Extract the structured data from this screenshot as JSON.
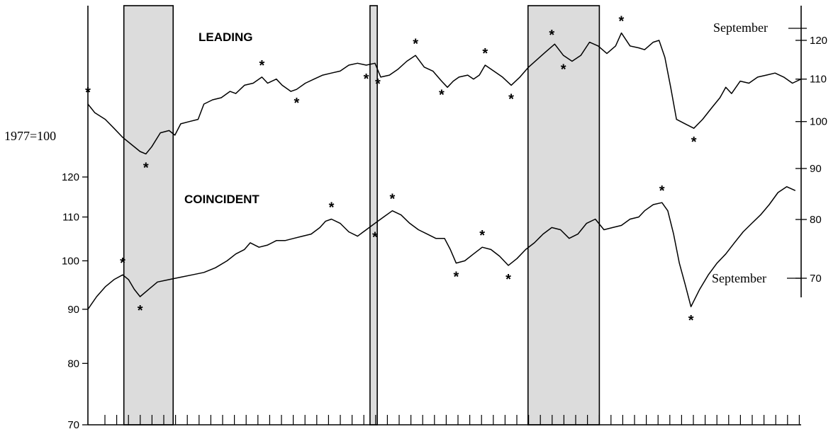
{
  "chart_data": {
    "type": "line",
    "base_label": "1977=100",
    "left_axis": {
      "ticks": [
        70,
        80,
        90,
        100,
        110,
        120
      ],
      "scale": "log",
      "range": [
        70,
        125
      ]
    },
    "right_axis": {
      "upper_ticks": [
        90,
        100,
        110,
        120
      ],
      "lower_ticks": [
        70,
        80
      ],
      "scale": "log"
    },
    "recession_shades": [
      {
        "start": 0.062,
        "end": 0.147
      },
      {
        "start": 0.4865,
        "end": 0.499
      },
      {
        "start": 0.759,
        "end": 0.882
      }
    ],
    "series": [
      {
        "name": "LEADING",
        "end_label": "September",
        "axis": "right",
        "points": [
          [
            0.0,
            104.0
          ],
          [
            0.012,
            102.0
          ],
          [
            0.03,
            100.5
          ],
          [
            0.045,
            98.5
          ],
          [
            0.06,
            96.5
          ],
          [
            0.075,
            95.0
          ],
          [
            0.09,
            93.5
          ],
          [
            0.1,
            93.0
          ],
          [
            0.11,
            94.5
          ],
          [
            0.125,
            97.5
          ],
          [
            0.14,
            98.0
          ],
          [
            0.15,
            97.0
          ],
          [
            0.16,
            99.5
          ],
          [
            0.175,
            100.0
          ],
          [
            0.19,
            100.5
          ],
          [
            0.2,
            104.0
          ],
          [
            0.215,
            105.0
          ],
          [
            0.23,
            105.5
          ],
          [
            0.245,
            107.0
          ],
          [
            0.255,
            106.5
          ],
          [
            0.27,
            108.5
          ],
          [
            0.285,
            109.0
          ],
          [
            0.3,
            110.5
          ],
          [
            0.31,
            109.0
          ],
          [
            0.325,
            110.0
          ],
          [
            0.335,
            108.5
          ],
          [
            0.35,
            107.0
          ],
          [
            0.36,
            107.5
          ],
          [
            0.375,
            109.0
          ],
          [
            0.39,
            110.0
          ],
          [
            0.405,
            111.0
          ],
          [
            0.42,
            111.5
          ],
          [
            0.435,
            112.0
          ],
          [
            0.45,
            113.5
          ],
          [
            0.465,
            114.0
          ],
          [
            0.48,
            113.5
          ],
          [
            0.495,
            114.0
          ],
          [
            0.505,
            110.5
          ],
          [
            0.52,
            111.0
          ],
          [
            0.535,
            112.5
          ],
          [
            0.55,
            114.5
          ],
          [
            0.565,
            116.0
          ],
          [
            0.58,
            113.0
          ],
          [
            0.595,
            112.0
          ],
          [
            0.61,
            109.5
          ],
          [
            0.62,
            108.0
          ],
          [
            0.63,
            109.5
          ],
          [
            0.64,
            110.5
          ],
          [
            0.655,
            111.0
          ],
          [
            0.665,
            110.0
          ],
          [
            0.675,
            111.0
          ],
          [
            0.685,
            113.5
          ],
          [
            0.7,
            112.0
          ],
          [
            0.715,
            110.5
          ],
          [
            0.73,
            108.5
          ],
          [
            0.745,
            110.5
          ],
          [
            0.76,
            113.0
          ],
          [
            0.775,
            115.0
          ],
          [
            0.79,
            117.0
          ],
          [
            0.805,
            119.0
          ],
          [
            0.82,
            116.0
          ],
          [
            0.835,
            114.5
          ],
          [
            0.85,
            116.0
          ],
          [
            0.865,
            119.5
          ],
          [
            0.88,
            118.5
          ],
          [
            0.895,
            116.5
          ],
          [
            0.91,
            118.5
          ],
          [
            0.92,
            122.0
          ],
          [
            0.935,
            118.5
          ],
          [
            0.95,
            118.0
          ],
          [
            0.96,
            117.5
          ],
          [
            0.975,
            119.5
          ],
          [
            0.985,
            120.0
          ],
          [
            0.995,
            115.5
          ],
          [
            1.005,
            108.0
          ],
          [
            1.015,
            100.5
          ],
          [
            1.03,
            99.5
          ],
          [
            1.045,
            98.5
          ],
          [
            1.06,
            100.5
          ],
          [
            1.075,
            103.0
          ],
          [
            1.09,
            105.5
          ],
          [
            1.1,
            108.0
          ],
          [
            1.11,
            106.5
          ],
          [
            1.125,
            109.5
          ],
          [
            1.14,
            109.0
          ],
          [
            1.155,
            110.5
          ],
          [
            1.17,
            111.0
          ],
          [
            1.185,
            111.5
          ],
          [
            1.2,
            110.5
          ],
          [
            1.215,
            109.0
          ],
          [
            1.23,
            110.0
          ]
        ]
      },
      {
        "name": "COINCIDENT",
        "end_label": "September",
        "axis": "left",
        "points": [
          [
            0.0,
            90.0
          ],
          [
            0.015,
            92.5
          ],
          [
            0.03,
            94.5
          ],
          [
            0.045,
            96.0
          ],
          [
            0.06,
            97.0
          ],
          [
            0.07,
            96.0
          ],
          [
            0.08,
            94.0
          ],
          [
            0.09,
            92.5
          ],
          [
            0.105,
            94.0
          ],
          [
            0.12,
            95.5
          ],
          [
            0.14,
            96.0
          ],
          [
            0.16,
            96.5
          ],
          [
            0.18,
            97.0
          ],
          [
            0.2,
            97.5
          ],
          [
            0.22,
            98.5
          ],
          [
            0.24,
            100.0
          ],
          [
            0.255,
            101.5
          ],
          [
            0.27,
            102.5
          ],
          [
            0.28,
            104.0
          ],
          [
            0.295,
            103.0
          ],
          [
            0.31,
            103.5
          ],
          [
            0.325,
            104.5
          ],
          [
            0.34,
            104.5
          ],
          [
            0.355,
            105.0
          ],
          [
            0.37,
            105.5
          ],
          [
            0.385,
            106.0
          ],
          [
            0.4,
            107.5
          ],
          [
            0.41,
            109.0
          ],
          [
            0.42,
            109.5
          ],
          [
            0.435,
            108.5
          ],
          [
            0.45,
            106.5
          ],
          [
            0.465,
            105.5
          ],
          [
            0.48,
            107.0
          ],
          [
            0.495,
            108.5
          ],
          [
            0.51,
            110.0
          ],
          [
            0.525,
            111.5
          ],
          [
            0.54,
            110.5
          ],
          [
            0.555,
            108.5
          ],
          [
            0.57,
            107.0
          ],
          [
            0.585,
            106.0
          ],
          [
            0.6,
            105.0
          ],
          [
            0.615,
            105.0
          ],
          [
            0.625,
            102.5
          ],
          [
            0.635,
            99.5
          ],
          [
            0.65,
            100.0
          ],
          [
            0.665,
            101.5
          ],
          [
            0.68,
            103.0
          ],
          [
            0.695,
            102.5
          ],
          [
            0.71,
            101.0
          ],
          [
            0.725,
            99.0
          ],
          [
            0.74,
            100.5
          ],
          [
            0.755,
            102.5
          ],
          [
            0.77,
            104.0
          ],
          [
            0.785,
            106.0
          ],
          [
            0.8,
            107.5
          ],
          [
            0.815,
            107.0
          ],
          [
            0.83,
            105.0
          ],
          [
            0.845,
            106.0
          ],
          [
            0.86,
            108.5
          ],
          [
            0.875,
            109.5
          ],
          [
            0.89,
            107.0
          ],
          [
            0.905,
            107.5
          ],
          [
            0.92,
            108.0
          ],
          [
            0.935,
            109.5
          ],
          [
            0.95,
            110.0
          ],
          [
            0.96,
            111.5
          ],
          [
            0.975,
            113.0
          ],
          [
            0.99,
            113.5
          ],
          [
            1.0,
            111.5
          ],
          [
            1.01,
            106.0
          ],
          [
            1.02,
            99.5
          ],
          [
            1.03,
            95.0
          ],
          [
            1.04,
            90.5
          ],
          [
            1.055,
            94.0
          ],
          [
            1.07,
            97.0
          ],
          [
            1.085,
            99.5
          ],
          [
            1.1,
            101.5
          ],
          [
            1.115,
            104.0
          ],
          [
            1.13,
            106.5
          ],
          [
            1.145,
            108.5
          ],
          [
            1.16,
            110.5
          ],
          [
            1.175,
            113.0
          ],
          [
            1.19,
            116.0
          ],
          [
            1.205,
            117.5
          ],
          [
            1.22,
            116.5
          ]
        ]
      }
    ],
    "turning_point_marker": "*",
    "leading_markers": [
      0.0,
      0.1,
      0.3,
      0.36,
      0.48,
      0.5,
      0.565,
      0.61,
      0.685,
      0.73,
      0.8,
      0.82,
      0.92,
      1.045
    ],
    "coincident_markers": [
      0.06,
      0.09,
      0.42,
      0.495,
      0.525,
      0.635,
      0.68,
      0.725,
      0.99,
      1.04
    ]
  }
}
